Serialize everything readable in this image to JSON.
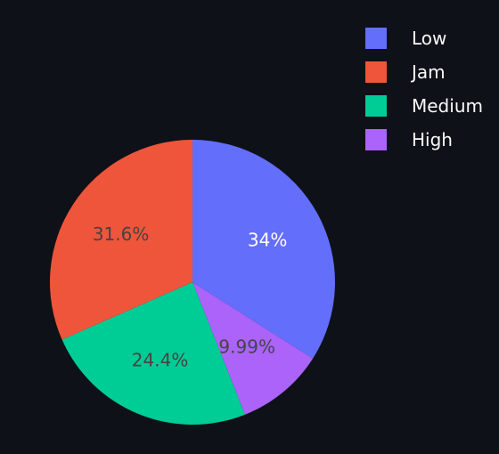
{
  "chart_data": {
    "type": "pie",
    "title": "",
    "categories": [
      "Low",
      "Jam",
      "Medium",
      "High"
    ],
    "values": [
      34.0,
      31.6,
      24.4,
      9.99
    ],
    "labels_text": [
      "34%",
      "31.6%",
      "24.4%",
      "9.99%"
    ],
    "colors": [
      "#636efa",
      "#ef553b",
      "#00cc96",
      "#ab63fa"
    ],
    "slice_order": [
      "Low",
      "High",
      "Medium",
      "Jam"
    ],
    "direction": "clockwise",
    "start": "top",
    "legend_position": "top-right",
    "legend": [
      "Low",
      "Jam",
      "Medium",
      "High"
    ],
    "label_colors": [
      "#ffffff",
      "#444444",
      "#444444",
      "#444444"
    ],
    "background": "#0e1117"
  }
}
